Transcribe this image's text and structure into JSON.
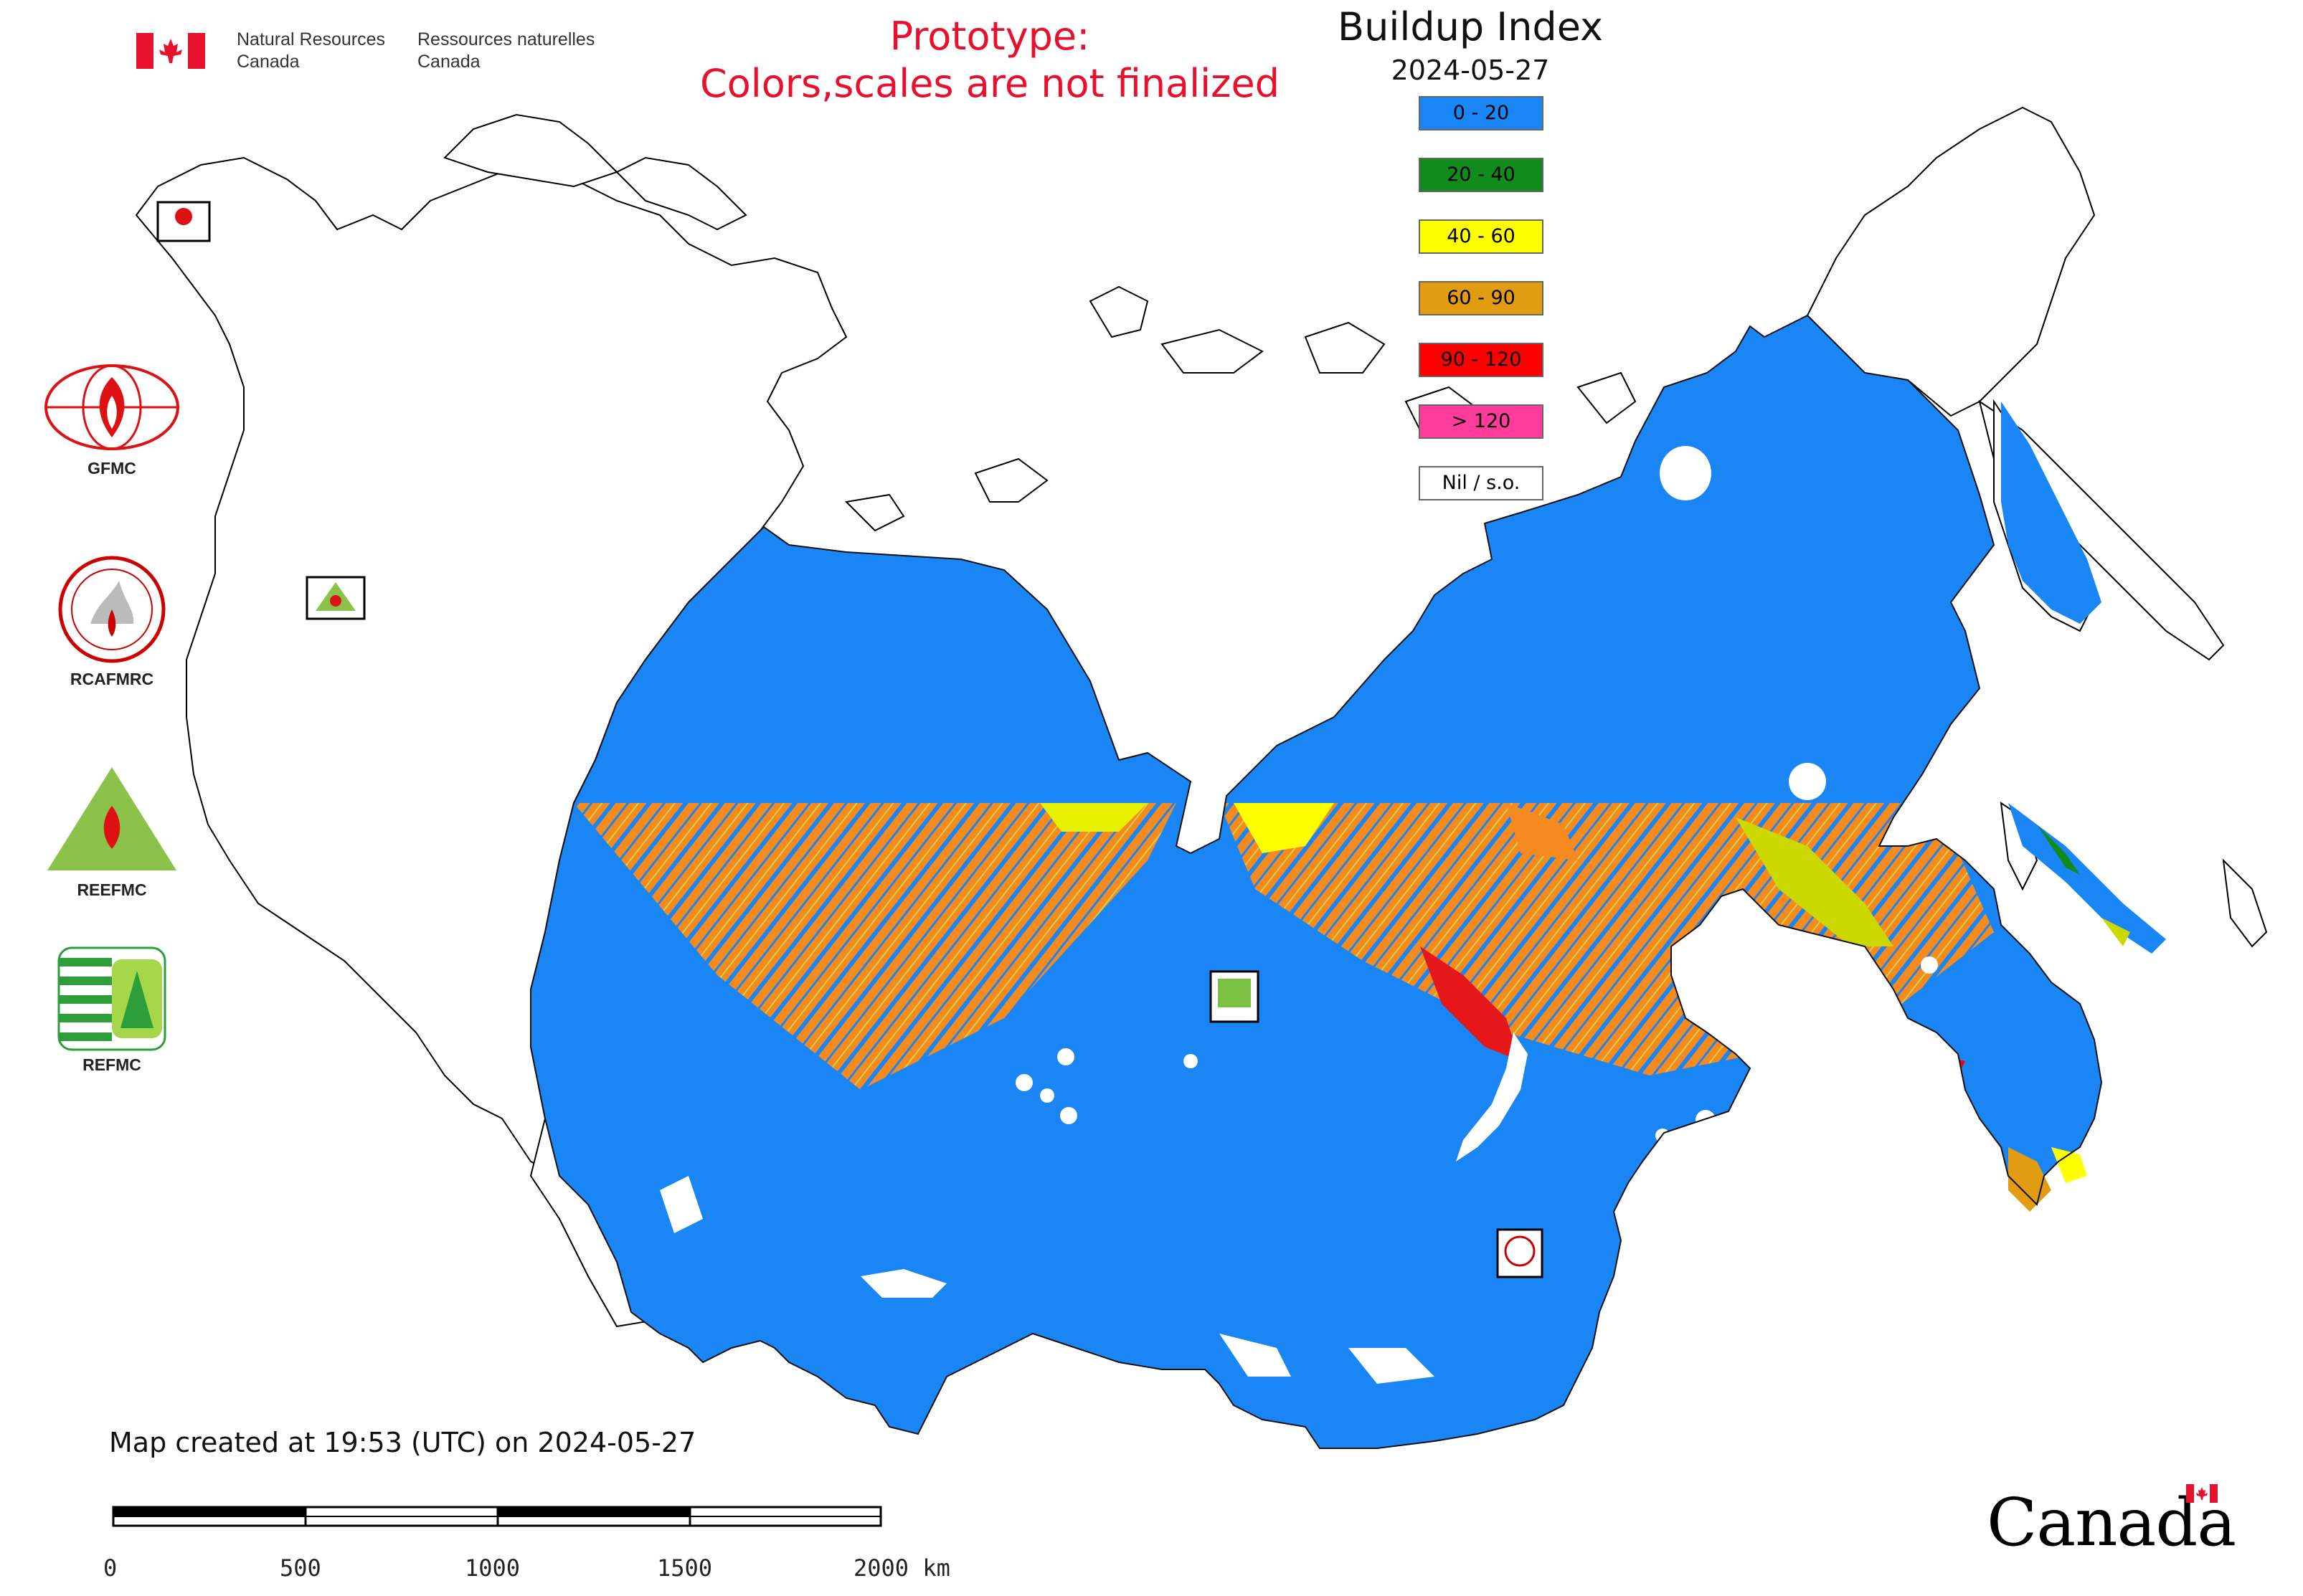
{
  "header": {
    "dept_en": "Natural Resources\nCanada",
    "dept_fr": "Ressources naturelles\nCanada",
    "prototype_line1": "Prototype:",
    "prototype_line2": "Colors,scales are not finalized",
    "title": "Buildup Index",
    "date": "2024-05-27"
  },
  "legend": {
    "items": [
      {
        "label": "0 - 20",
        "color": "#1a86f5"
      },
      {
        "label": "20 - 40",
        "color": "#118b1b"
      },
      {
        "label": "40 - 60",
        "color": "#ffff00"
      },
      {
        "label": "60 - 90",
        "color": "#e19c12"
      },
      {
        "label": "90 - 120",
        "color": "#ff0000"
      },
      {
        "label": "> 120",
        "color": "#ff3c9c"
      },
      {
        "label": "Nil / s.o.",
        "color": "#ffffff"
      }
    ]
  },
  "logos": {
    "gfmc": "GFMC",
    "rcafmrc": "RCAFMRC",
    "reefmc": "REEFMC",
    "refmc": "REFMC"
  },
  "footer": {
    "created": "Map created at 19:53 (UTC) on 2024-05-27",
    "scale_ticks": [
      "0",
      "500",
      "1000",
      "1500",
      "2000 km"
    ],
    "wordmark": "Canada"
  },
  "colors": {
    "map_blue": "#1a86f5",
    "orange": "#f58a1e",
    "yellow": "#ffff00",
    "red": "#e8112d"
  }
}
